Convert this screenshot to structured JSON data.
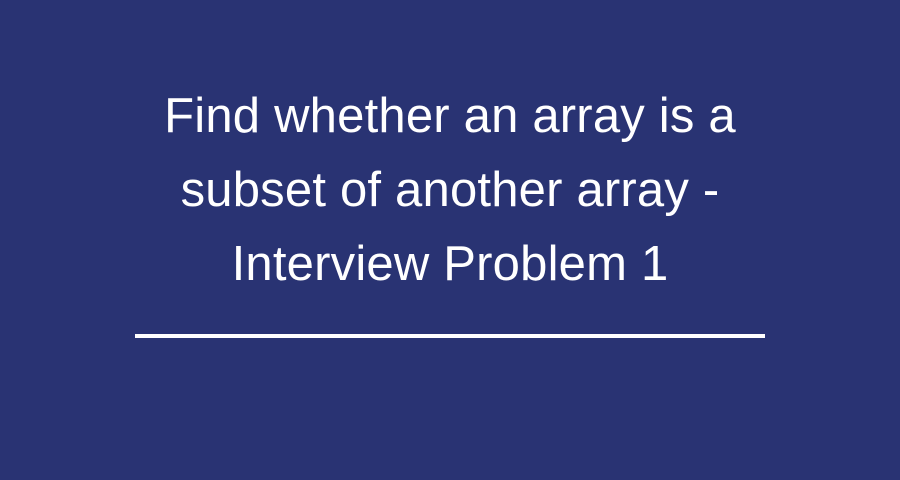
{
  "title": {
    "lines": [
      "Find whether an array is a",
      "subset of another array -",
      "Interview Problem 1"
    ]
  },
  "colors": {
    "background": "#293373",
    "text": "#ffffff",
    "divider": "#ffffff"
  }
}
